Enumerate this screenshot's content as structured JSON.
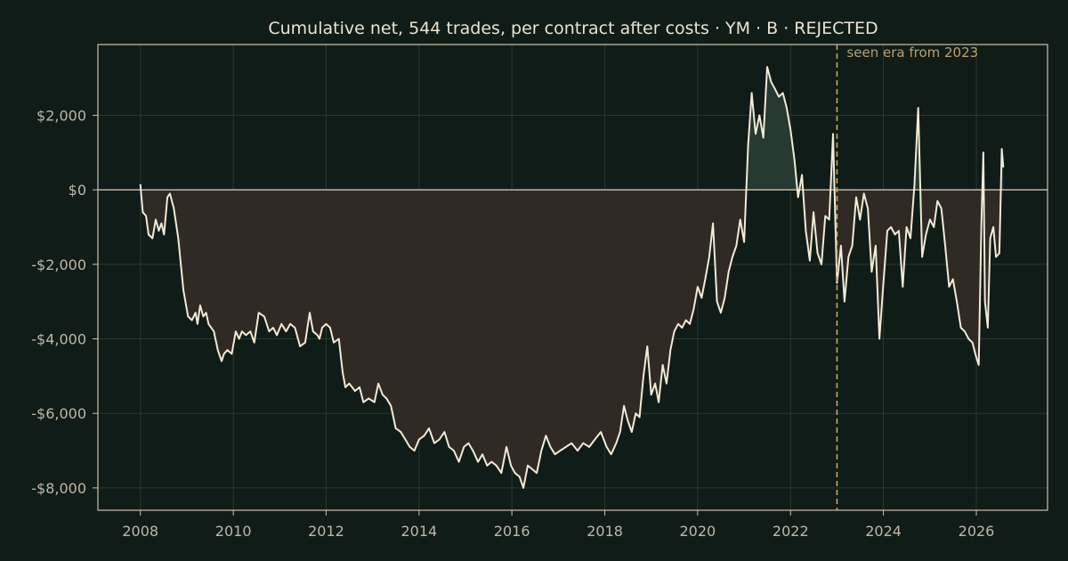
{
  "chart_data": {
    "type": "area",
    "title": "Cumulative net, 544 trades, per contract after costs  ·  YM · B · REJECTED",
    "xlabel": "",
    "ylabel": "",
    "xlim": [
      "2007-02-01",
      "2027-07-15"
    ],
    "ylim": [
      -8600,
      3900
    ],
    "x_ticks": [
      {
        "value": "2008-01-01",
        "label": "2008"
      },
      {
        "value": "2010-01-01",
        "label": "2010"
      },
      {
        "value": "2012-01-01",
        "label": "2012"
      },
      {
        "value": "2014-01-01",
        "label": "2014"
      },
      {
        "value": "2016-01-01",
        "label": "2016"
      },
      {
        "value": "2018-01-01",
        "label": "2018"
      },
      {
        "value": "2020-01-01",
        "label": "2020"
      },
      {
        "value": "2022-01-01",
        "label": "2022"
      },
      {
        "value": "2024-01-01",
        "label": "2024"
      },
      {
        "value": "2026-01-01",
        "label": "2026"
      }
    ],
    "y_ticks": [
      {
        "value": 2000,
        "label": "$2,000"
      },
      {
        "value": 0,
        "label": "$0"
      },
      {
        "value": -2000,
        "label": "-$2,000"
      },
      {
        "value": -4000,
        "label": "-$4,000"
      },
      {
        "value": -6000,
        "label": "-$6,000"
      },
      {
        "value": -8000,
        "label": "-$8,000"
      }
    ],
    "grid": true,
    "fill_positive_color": "#263a31",
    "fill_negative_color": "#302a25",
    "line_color": "#f1ead6",
    "annotation": {
      "date": "2023-01-01",
      "label": "seen era from 2023",
      "color": "#c9a46a"
    },
    "series": [
      {
        "values": [
          [
            "2008-01-01",
            150
          ],
          [
            "2008-01-20",
            -600
          ],
          [
            "2008-02-15",
            -700
          ],
          [
            "2008-03-05",
            -1200
          ],
          [
            "2008-04-05",
            -1300
          ],
          [
            "2008-05-01",
            -800
          ],
          [
            "2008-05-25",
            -1100
          ],
          [
            "2008-06-15",
            -900
          ],
          [
            "2008-07-05",
            -1200
          ],
          [
            "2008-08-01",
            -200
          ],
          [
            "2008-08-20",
            -100
          ],
          [
            "2008-09-20",
            -500
          ],
          [
            "2008-10-25",
            -1300
          ],
          [
            "2008-12-05",
            -2700
          ],
          [
            "2009-01-10",
            -3400
          ],
          [
            "2009-02-10",
            -3500
          ],
          [
            "2009-03-10",
            -3300
          ],
          [
            "2009-03-25",
            -3600
          ],
          [
            "2009-04-15",
            -3100
          ],
          [
            "2009-05-10",
            -3400
          ],
          [
            "2009-06-01",
            -3300
          ],
          [
            "2009-06-20",
            -3600
          ],
          [
            "2009-08-01",
            -3800
          ],
          [
            "2009-09-01",
            -4300
          ],
          [
            "2009-10-01",
            -4600
          ],
          [
            "2009-10-20",
            -4400
          ],
          [
            "2009-11-15",
            -4300
          ],
          [
            "2009-12-20",
            -4400
          ],
          [
            "2010-01-20",
            -3800
          ],
          [
            "2010-02-15",
            -4000
          ],
          [
            "2010-03-10",
            -3800
          ],
          [
            "2010-04-10",
            -3900
          ],
          [
            "2010-05-15",
            -3800
          ],
          [
            "2010-06-15",
            -4100
          ],
          [
            "2010-07-20",
            -3300
          ],
          [
            "2010-09-01",
            -3400
          ],
          [
            "2010-10-10",
            -3800
          ],
          [
            "2010-11-10",
            -3700
          ],
          [
            "2010-12-10",
            -3900
          ],
          [
            "2011-01-15",
            -3600
          ],
          [
            "2011-02-20",
            -3800
          ],
          [
            "2011-03-25",
            -3600
          ],
          [
            "2011-05-01",
            -3700
          ],
          [
            "2011-06-10",
            -4200
          ],
          [
            "2011-07-20",
            -4100
          ],
          [
            "2011-08-25",
            -3300
          ],
          [
            "2011-09-20",
            -3800
          ],
          [
            "2011-10-25",
            -3900
          ],
          [
            "2011-11-10",
            -4000
          ],
          [
            "2011-12-01",
            -3700
          ],
          [
            "2012-01-01",
            -3600
          ],
          [
            "2012-02-01",
            -3700
          ],
          [
            "2012-03-01",
            -4100
          ],
          [
            "2012-04-10",
            -4000
          ],
          [
            "2012-05-10",
            -4900
          ],
          [
            "2012-06-01",
            -5300
          ],
          [
            "2012-07-01",
            -5200
          ],
          [
            "2012-08-15",
            -5400
          ],
          [
            "2012-09-20",
            -5300
          ],
          [
            "2012-10-20",
            -5700
          ],
          [
            "2012-12-01",
            -5600
          ],
          [
            "2013-01-15",
            -5700
          ],
          [
            "2013-02-15",
            -5200
          ],
          [
            "2013-03-20",
            -5500
          ],
          [
            "2013-04-20",
            -5600
          ],
          [
            "2013-05-25",
            -5800
          ],
          [
            "2013-07-01",
            -6400
          ],
          [
            "2013-08-10",
            -6500
          ],
          [
            "2013-09-15",
            -6700
          ],
          [
            "2013-10-20",
            -6900
          ],
          [
            "2013-11-25",
            -7000
          ],
          [
            "2014-01-01",
            -6700
          ],
          [
            "2014-02-10",
            -6600
          ],
          [
            "2014-03-20",
            -6400
          ],
          [
            "2014-05-01",
            -6800
          ],
          [
            "2014-06-10",
            -6700
          ],
          [
            "2014-07-20",
            -6500
          ],
          [
            "2014-08-25",
            -6900
          ],
          [
            "2014-10-01",
            -7000
          ],
          [
            "2014-11-10",
            -7300
          ],
          [
            "2014-12-20",
            -6900
          ],
          [
            "2015-01-25",
            -6800
          ],
          [
            "2015-03-01",
            -7000
          ],
          [
            "2015-04-10",
            -7300
          ],
          [
            "2015-05-15",
            -7100
          ],
          [
            "2015-06-20",
            -7400
          ],
          [
            "2015-07-25",
            -7300
          ],
          [
            "2015-09-01",
            -7400
          ],
          [
            "2015-10-10",
            -7600
          ],
          [
            "2015-11-20",
            -6900
          ],
          [
            "2015-12-25",
            -7400
          ],
          [
            "2016-01-25",
            -7600
          ],
          [
            "2016-03-01",
            -7700
          ],
          [
            "2016-04-01",
            -8000
          ],
          [
            "2016-05-05",
            -7400
          ],
          [
            "2016-06-10",
            -7500
          ],
          [
            "2016-07-15",
            -7600
          ],
          [
            "2016-08-20",
            -7000
          ],
          [
            "2016-09-25",
            -6600
          ],
          [
            "2016-10-30",
            -6900
          ],
          [
            "2016-12-05",
            -7100
          ],
          [
            "2017-01-15",
            -7000
          ],
          [
            "2017-03-01",
            -6900
          ],
          [
            "2017-04-15",
            -6800
          ],
          [
            "2017-06-01",
            -7000
          ],
          [
            "2017-07-15",
            -6800
          ],
          [
            "2017-09-01",
            -6900
          ],
          [
            "2017-10-15",
            -6700
          ],
          [
            "2017-12-01",
            -6500
          ],
          [
            "2018-01-15",
            -6900
          ],
          [
            "2018-02-20",
            -7100
          ],
          [
            "2018-04-01",
            -6800
          ],
          [
            "2018-05-01",
            -6500
          ],
          [
            "2018-06-01",
            -5800
          ],
          [
            "2018-07-01",
            -6200
          ],
          [
            "2018-08-01",
            -6500
          ],
          [
            "2018-09-01",
            -6000
          ],
          [
            "2018-10-01",
            -6100
          ],
          [
            "2018-11-01",
            -5000
          ],
          [
            "2018-12-01",
            -4200
          ],
          [
            "2019-01-01",
            -5500
          ],
          [
            "2019-02-01",
            -5200
          ],
          [
            "2019-03-01",
            -5700
          ],
          [
            "2019-04-01",
            -4700
          ],
          [
            "2019-05-01",
            -5200
          ],
          [
            "2019-06-01",
            -4300
          ],
          [
            "2019-07-01",
            -3800
          ],
          [
            "2019-08-01",
            -3600
          ],
          [
            "2019-09-01",
            -3700
          ],
          [
            "2019-10-01",
            -3500
          ],
          [
            "2019-11-01",
            -3600
          ],
          [
            "2019-12-01",
            -3200
          ],
          [
            "2020-01-01",
            -2600
          ],
          [
            "2020-02-01",
            -2900
          ],
          [
            "2020-03-01",
            -2400
          ],
          [
            "2020-04-01",
            -1800
          ],
          [
            "2020-05-01",
            -900
          ],
          [
            "2020-06-01",
            -3000
          ],
          [
            "2020-07-01",
            -3300
          ],
          [
            "2020-08-01",
            -2900
          ],
          [
            "2020-09-01",
            -2200
          ],
          [
            "2020-10-01",
            -1800
          ],
          [
            "2020-11-01",
            -1500
          ],
          [
            "2020-12-01",
            -800
          ],
          [
            "2021-01-01",
            -1400
          ],
          [
            "2021-02-01",
            1200
          ],
          [
            "2021-03-01",
            2600
          ],
          [
            "2021-04-01",
            1500
          ],
          [
            "2021-05-01",
            2000
          ],
          [
            "2021-06-01",
            1400
          ],
          [
            "2021-07-01",
            3300
          ],
          [
            "2021-08-01",
            2900
          ],
          [
            "2021-09-01",
            2700
          ],
          [
            "2021-10-01",
            2500
          ],
          [
            "2021-11-01",
            2600
          ],
          [
            "2021-12-01",
            2200
          ],
          [
            "2022-01-01",
            1600
          ],
          [
            "2022-02-01",
            800
          ],
          [
            "2022-03-01",
            -200
          ],
          [
            "2022-04-01",
            400
          ],
          [
            "2022-05-01",
            -1100
          ],
          [
            "2022-06-01",
            -1900
          ],
          [
            "2022-07-01",
            -600
          ],
          [
            "2022-08-01",
            -1700
          ],
          [
            "2022-09-01",
            -2000
          ],
          [
            "2022-10-01",
            -700
          ],
          [
            "2022-11-01",
            -800
          ],
          [
            "2022-12-01",
            1500
          ],
          [
            "2023-01-01",
            -2500
          ],
          [
            "2023-02-01",
            -1500
          ],
          [
            "2023-03-01",
            -3000
          ],
          [
            "2023-04-01",
            -1800
          ],
          [
            "2023-05-01",
            -1500
          ],
          [
            "2023-06-01",
            -200
          ],
          [
            "2023-07-01",
            -800
          ],
          [
            "2023-08-01",
            -100
          ],
          [
            "2023-09-01",
            -500
          ],
          [
            "2023-10-01",
            -2200
          ],
          [
            "2023-11-01",
            -1500
          ],
          [
            "2023-12-01",
            -4000
          ],
          [
            "2024-01-01",
            -2500
          ],
          [
            "2024-02-01",
            -1100
          ],
          [
            "2024-03-01",
            -1000
          ],
          [
            "2024-04-01",
            -1200
          ],
          [
            "2024-05-01",
            -1100
          ],
          [
            "2024-06-01",
            -2600
          ],
          [
            "2024-07-01",
            -1000
          ],
          [
            "2024-08-01",
            -1300
          ],
          [
            "2024-09-01",
            100
          ],
          [
            "2024-10-01",
            2200
          ],
          [
            "2024-11-01",
            -1800
          ],
          [
            "2024-12-01",
            -1200
          ],
          [
            "2025-01-01",
            -800
          ],
          [
            "2025-02-01",
            -1000
          ],
          [
            "2025-03-01",
            -300
          ],
          [
            "2025-04-01",
            -500
          ],
          [
            "2025-05-01",
            -1500
          ],
          [
            "2025-06-01",
            -2600
          ],
          [
            "2025-07-01",
            -2400
          ],
          [
            "2025-08-01",
            -3000
          ],
          [
            "2025-09-01",
            -3700
          ],
          [
            "2025-10-01",
            -3800
          ],
          [
            "2025-11-01",
            -4000
          ],
          [
            "2025-12-01",
            -4100
          ],
          [
            "2026-01-01",
            -4500
          ],
          [
            "2026-01-20",
            -4700
          ],
          [
            "2026-02-10",
            -900
          ],
          [
            "2026-02-25",
            1000
          ],
          [
            "2026-03-10",
            -3000
          ],
          [
            "2026-04-01",
            -3700
          ],
          [
            "2026-04-20",
            -1300
          ],
          [
            "2026-05-15",
            -1000
          ],
          [
            "2026-06-05",
            -1800
          ],
          [
            "2026-07-01",
            -1700
          ],
          [
            "2026-07-20",
            1100
          ],
          [
            "2026-08-01",
            600
          ]
        ]
      }
    ]
  }
}
